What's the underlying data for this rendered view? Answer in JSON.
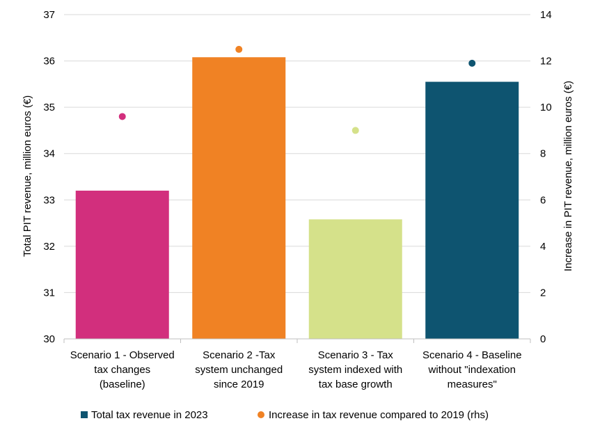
{
  "chart_data": {
    "type": "bar",
    "categories": [
      [
        "Scenario 1 - Observed",
        "tax changes",
        "(baseline)"
      ],
      [
        "Scenario 2 -Tax",
        "system unchanged",
        "since 2019"
      ],
      [
        "Scenario 3 - Tax",
        "system indexed with",
        "tax base growth"
      ],
      [
        "Scenario 4 - Baseline",
        "without \"indexation",
        "measures\""
      ]
    ],
    "series": [
      {
        "name": "Total tax revenue in 2023",
        "type": "bar",
        "axis": "left",
        "values": [
          33.2,
          36.08,
          32.58,
          35.55
        ]
      },
      {
        "name": "Increase in tax revenue compared to 2019 (rhs)",
        "type": "scatter",
        "axis": "right",
        "values": [
          9.6,
          12.5,
          9.0,
          11.9
        ]
      }
    ],
    "colors": [
      "#d22f7d",
      "#f08224",
      "#d5e18a",
      "#0e5470"
    ],
    "legend_colors": {
      "bar": "#0e5470",
      "dot": "#f08224"
    },
    "ylabel_left": "Total PIT revenue, million euros (€)",
    "ylabel_right": "Increase in PIT revenue, million euros (€)",
    "ylim_left": [
      30,
      37
    ],
    "yticks_left": [
      "30",
      "31",
      "32",
      "33",
      "34",
      "35",
      "36",
      "37"
    ],
    "ylim_right": [
      0,
      14
    ],
    "yticks_right": [
      "0",
      "2",
      "4",
      "6",
      "8",
      "10",
      "12",
      "14"
    ],
    "grid": true,
    "legend_position": "bottom"
  }
}
